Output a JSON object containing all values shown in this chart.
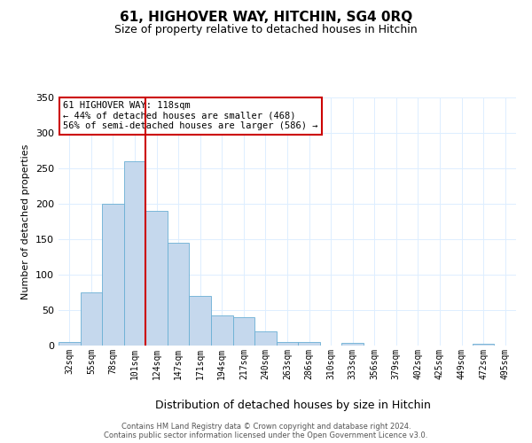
{
  "title": "61, HIGHOVER WAY, HITCHIN, SG4 0RQ",
  "subtitle": "Size of property relative to detached houses in Hitchin",
  "xlabel": "Distribution of detached houses by size in Hitchin",
  "ylabel": "Number of detached properties",
  "bar_labels": [
    "32sqm",
    "55sqm",
    "78sqm",
    "101sqm",
    "124sqm",
    "147sqm",
    "171sqm",
    "194sqm",
    "217sqm",
    "240sqm",
    "263sqm",
    "286sqm",
    "310sqm",
    "333sqm",
    "356sqm",
    "379sqm",
    "402sqm",
    "425sqm",
    "449sqm",
    "472sqm",
    "495sqm"
  ],
  "bar_values": [
    5,
    75,
    200,
    260,
    190,
    145,
    70,
    43,
    40,
    20,
    5,
    5,
    0,
    4,
    0,
    0,
    0,
    0,
    0,
    2,
    0
  ],
  "bar_color": "#c5d8ed",
  "bar_edge_color": "#6aafd4",
  "vline_x_index": 4,
  "vline_color": "#cc0000",
  "annotation_text": "61 HIGHOVER WAY: 118sqm\n← 44% of detached houses are smaller (468)\n56% of semi-detached houses are larger (586) →",
  "annotation_box_color": "#cc0000",
  "ylim": [
    0,
    350
  ],
  "yticks": [
    0,
    50,
    100,
    150,
    200,
    250,
    300,
    350
  ],
  "footer1": "Contains HM Land Registry data © Crown copyright and database right 2024.",
  "footer2": "Contains public sector information licensed under the Open Government Licence v3.0.",
  "title_fontsize": 11,
  "subtitle_fontsize": 9,
  "background_color": "#ffffff",
  "grid_color": "#ddeeff"
}
